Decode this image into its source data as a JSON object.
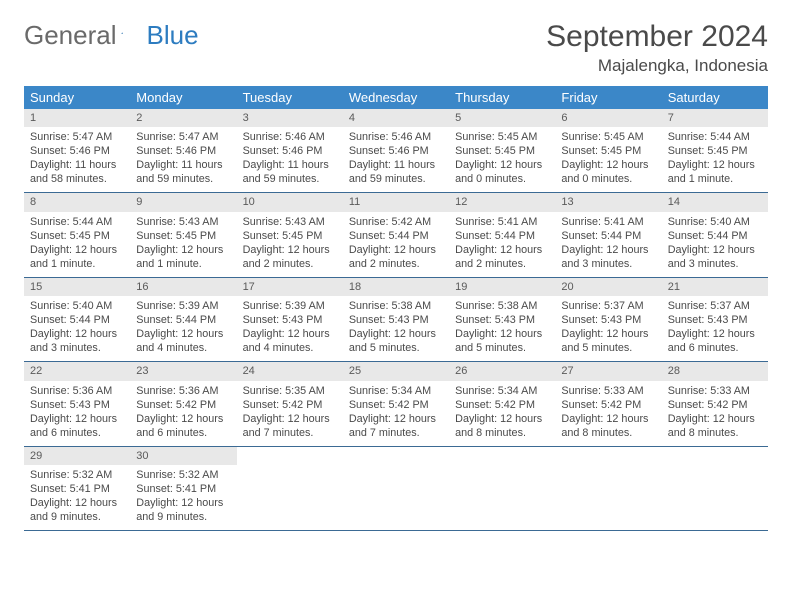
{
  "logo": {
    "text1": "General",
    "text2": "Blue"
  },
  "title": "September 2024",
  "location": "Majalengka, Indonesia",
  "colors": {
    "header_bg": "#3b87c8",
    "header_text": "#ffffff",
    "daynum_bg": "#e8e8e8",
    "border": "#3b6a94",
    "text": "#4a4a4a",
    "logo_gray": "#6a6a6a",
    "logo_blue": "#2d7cc0"
  },
  "layout": {
    "columns": 7,
    "rows": 5,
    "cell_font_size": 10.8
  },
  "day_headers": [
    "Sunday",
    "Monday",
    "Tuesday",
    "Wednesday",
    "Thursday",
    "Friday",
    "Saturday"
  ],
  "weeks": [
    [
      {
        "n": "1",
        "sunrise": "5:47 AM",
        "sunset": "5:46 PM",
        "daylight": "11 hours and 58 minutes."
      },
      {
        "n": "2",
        "sunrise": "5:47 AM",
        "sunset": "5:46 PM",
        "daylight": "11 hours and 59 minutes."
      },
      {
        "n": "3",
        "sunrise": "5:46 AM",
        "sunset": "5:46 PM",
        "daylight": "11 hours and 59 minutes."
      },
      {
        "n": "4",
        "sunrise": "5:46 AM",
        "sunset": "5:46 PM",
        "daylight": "11 hours and 59 minutes."
      },
      {
        "n": "5",
        "sunrise": "5:45 AM",
        "sunset": "5:45 PM",
        "daylight": "12 hours and 0 minutes."
      },
      {
        "n": "6",
        "sunrise": "5:45 AM",
        "sunset": "5:45 PM",
        "daylight": "12 hours and 0 minutes."
      },
      {
        "n": "7",
        "sunrise": "5:44 AM",
        "sunset": "5:45 PM",
        "daylight": "12 hours and 1 minute."
      }
    ],
    [
      {
        "n": "8",
        "sunrise": "5:44 AM",
        "sunset": "5:45 PM",
        "daylight": "12 hours and 1 minute."
      },
      {
        "n": "9",
        "sunrise": "5:43 AM",
        "sunset": "5:45 PM",
        "daylight": "12 hours and 1 minute."
      },
      {
        "n": "10",
        "sunrise": "5:43 AM",
        "sunset": "5:45 PM",
        "daylight": "12 hours and 2 minutes."
      },
      {
        "n": "11",
        "sunrise": "5:42 AM",
        "sunset": "5:44 PM",
        "daylight": "12 hours and 2 minutes."
      },
      {
        "n": "12",
        "sunrise": "5:41 AM",
        "sunset": "5:44 PM",
        "daylight": "12 hours and 2 minutes."
      },
      {
        "n": "13",
        "sunrise": "5:41 AM",
        "sunset": "5:44 PM",
        "daylight": "12 hours and 3 minutes."
      },
      {
        "n": "14",
        "sunrise": "5:40 AM",
        "sunset": "5:44 PM",
        "daylight": "12 hours and 3 minutes."
      }
    ],
    [
      {
        "n": "15",
        "sunrise": "5:40 AM",
        "sunset": "5:44 PM",
        "daylight": "12 hours and 3 minutes."
      },
      {
        "n": "16",
        "sunrise": "5:39 AM",
        "sunset": "5:44 PM",
        "daylight": "12 hours and 4 minutes."
      },
      {
        "n": "17",
        "sunrise": "5:39 AM",
        "sunset": "5:43 PM",
        "daylight": "12 hours and 4 minutes."
      },
      {
        "n": "18",
        "sunrise": "5:38 AM",
        "sunset": "5:43 PM",
        "daylight": "12 hours and 5 minutes."
      },
      {
        "n": "19",
        "sunrise": "5:38 AM",
        "sunset": "5:43 PM",
        "daylight": "12 hours and 5 minutes."
      },
      {
        "n": "20",
        "sunrise": "5:37 AM",
        "sunset": "5:43 PM",
        "daylight": "12 hours and 5 minutes."
      },
      {
        "n": "21",
        "sunrise": "5:37 AM",
        "sunset": "5:43 PM",
        "daylight": "12 hours and 6 minutes."
      }
    ],
    [
      {
        "n": "22",
        "sunrise": "5:36 AM",
        "sunset": "5:43 PM",
        "daylight": "12 hours and 6 minutes."
      },
      {
        "n": "23",
        "sunrise": "5:36 AM",
        "sunset": "5:42 PM",
        "daylight": "12 hours and 6 minutes."
      },
      {
        "n": "24",
        "sunrise": "5:35 AM",
        "sunset": "5:42 PM",
        "daylight": "12 hours and 7 minutes."
      },
      {
        "n": "25",
        "sunrise": "5:34 AM",
        "sunset": "5:42 PM",
        "daylight": "12 hours and 7 minutes."
      },
      {
        "n": "26",
        "sunrise": "5:34 AM",
        "sunset": "5:42 PM",
        "daylight": "12 hours and 8 minutes."
      },
      {
        "n": "27",
        "sunrise": "5:33 AM",
        "sunset": "5:42 PM",
        "daylight": "12 hours and 8 minutes."
      },
      {
        "n": "28",
        "sunrise": "5:33 AM",
        "sunset": "5:42 PM",
        "daylight": "12 hours and 8 minutes."
      }
    ],
    [
      {
        "n": "29",
        "sunrise": "5:32 AM",
        "sunset": "5:41 PM",
        "daylight": "12 hours and 9 minutes."
      },
      {
        "n": "30",
        "sunrise": "5:32 AM",
        "sunset": "5:41 PM",
        "daylight": "12 hours and 9 minutes."
      },
      null,
      null,
      null,
      null,
      null
    ]
  ],
  "labels": {
    "sunrise": "Sunrise:",
    "sunset": "Sunset:",
    "daylight": "Daylight:"
  }
}
